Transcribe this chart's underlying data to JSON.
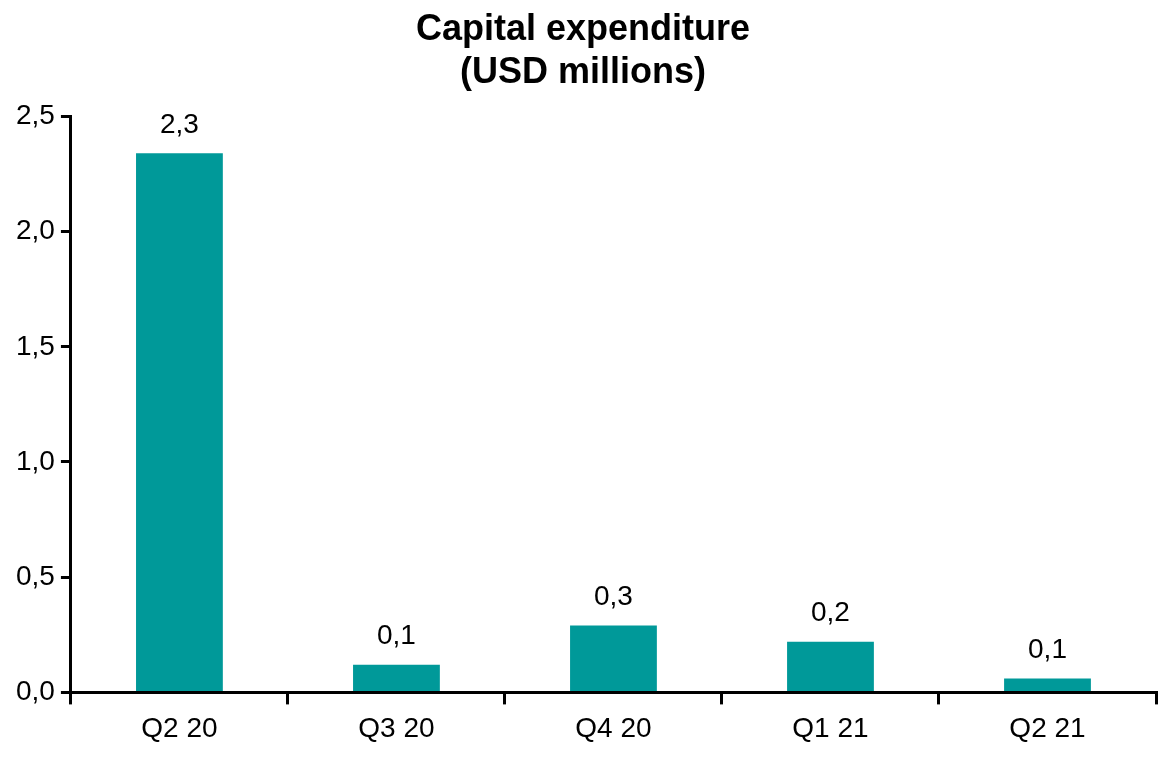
{
  "chart_data": {
    "type": "bar",
    "title": "Capital expenditure",
    "subtitle": "(USD millions)",
    "categories": [
      "Q2 20",
      "Q3 20",
      "Q4 20",
      "Q1 21",
      "Q2 21"
    ],
    "values": [
      2.34,
      0.12,
      0.29,
      0.22,
      0.06
    ],
    "value_labels": [
      "2,3",
      "0,1",
      "0,3",
      "0,2",
      "0,1"
    ],
    "color": "#009999",
    "ylim": [
      0,
      2.5
    ],
    "yticks": [
      {
        "value": 0,
        "label": "0,0"
      },
      {
        "value": 0.5,
        "label": "0,5"
      },
      {
        "value": 1,
        "label": "1,0"
      },
      {
        "value": 1.5,
        "label": "1,5"
      },
      {
        "value": 2,
        "label": "2,0"
      },
      {
        "value": 2.5,
        "label": "2,5"
      }
    ],
    "grid": false,
    "legend": false
  }
}
